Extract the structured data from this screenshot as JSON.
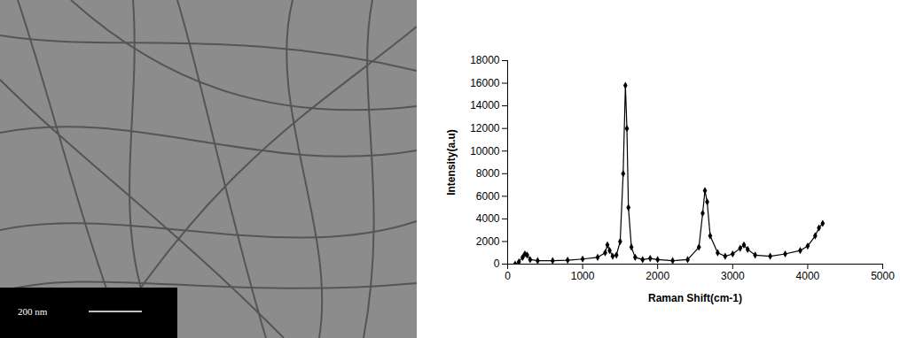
{
  "image": {
    "scale_bar": "200 nm"
  },
  "chart_data": {
    "type": "line",
    "x_label": "Raman Shift(cm-1)",
    "y_label": "Intensity(a.u)",
    "x": [
      100,
      150,
      200,
      230,
      260,
      300,
      400,
      600,
      800,
      1000,
      1200,
      1300,
      1330,
      1360,
      1400,
      1450,
      1500,
      1540,
      1570,
      1590,
      1610,
      1650,
      1700,
      1800,
      1900,
      2000,
      2200,
      2400,
      2550,
      2600,
      2630,
      2660,
      2700,
      2800,
      2900,
      3000,
      3100,
      3150,
      3200,
      3300,
      3500,
      3700,
      3900,
      4000,
      4100,
      4150,
      4200
    ],
    "values": [
      0,
      200,
      600,
      900,
      800,
      400,
      300,
      300,
      350,
      450,
      600,
      1000,
      1700,
      1200,
      700,
      800,
      2000,
      8000,
      15800,
      12000,
      5000,
      1500,
      600,
      400,
      500,
      400,
      300,
      400,
      1500,
      4500,
      6500,
      5500,
      2500,
      1000,
      700,
      900,
      1400,
      1700,
      1300,
      800,
      700,
      900,
      1200,
      1600,
      2500,
      3200,
      3600
    ],
    "color": "#000000",
    "marker": "diamond",
    "xlim": [
      0,
      5000
    ],
    "xticks": [
      0,
      1000,
      2000,
      3000,
      4000,
      5000
    ],
    "ylim": [
      0,
      18000
    ],
    "yticks": [
      0,
      2000,
      4000,
      6000,
      8000,
      10000,
      12000,
      14000,
      16000,
      18000
    ],
    "grid": false
  }
}
